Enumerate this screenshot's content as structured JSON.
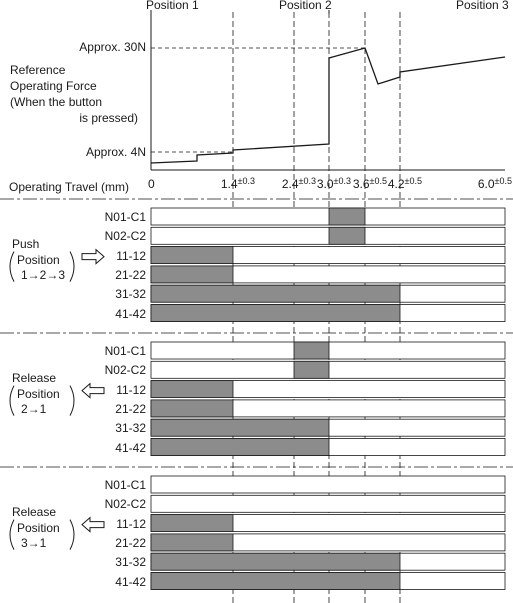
{
  "header": {
    "positions": [
      "Position 1",
      "Position 2",
      "Position 3"
    ]
  },
  "force_chart": {
    "high_label": "Approx. 30N",
    "low_label": "Approx. 4N",
    "y_title_lines": [
      "Reference",
      "Operating Force",
      "(When the button",
      "is pressed)"
    ]
  },
  "travel": {
    "label": "Operating Travel (mm)",
    "ticks": [
      {
        "value": "0",
        "tol": ""
      },
      {
        "value": "1.4",
        "tol": "±0.3"
      },
      {
        "value": "2.4",
        "tol": "±0.3"
      },
      {
        "value": "3.0",
        "tol": "±0.3"
      },
      {
        "value": "3.6",
        "tol": "±0.5"
      },
      {
        "value": "4.2",
        "tol": "±0.5"
      },
      {
        "value": "6.0",
        "tol": "±0.5"
      }
    ]
  },
  "sections": [
    {
      "title": "Push",
      "position_word": "Position",
      "sequence": "1→2→3",
      "arrow": "right",
      "contacts": [
        {
          "name": "N01-C1",
          "on": [
            [
              3.0,
              3.6
            ]
          ]
        },
        {
          "name": "N02-C2",
          "on": [
            [
              3.0,
              3.6
            ]
          ]
        },
        {
          "name": "11-12",
          "on": [
            [
              0,
              1.4
            ]
          ]
        },
        {
          "name": "21-22",
          "on": [
            [
              0,
              1.4
            ]
          ]
        },
        {
          "name": "31-32",
          "on": [
            [
              0,
              4.2
            ]
          ]
        },
        {
          "name": "41-42",
          "on": [
            [
              0,
              4.2
            ]
          ]
        }
      ]
    },
    {
      "title": "Release",
      "position_word": "Position",
      "sequence": "2→1",
      "arrow": "left",
      "contacts": [
        {
          "name": "N01-C1",
          "on": [
            [
              2.4,
              3.0
            ]
          ]
        },
        {
          "name": "N02-C2",
          "on": [
            [
              2.4,
              3.0
            ]
          ]
        },
        {
          "name": "11-12",
          "on": [
            [
              0,
              1.4
            ]
          ]
        },
        {
          "name": "21-22",
          "on": [
            [
              0,
              1.4
            ]
          ]
        },
        {
          "name": "31-32",
          "on": [
            [
              0,
              3.0
            ]
          ]
        },
        {
          "name": "41-42",
          "on": [
            [
              0,
              3.0
            ]
          ]
        }
      ]
    },
    {
      "title": "Release",
      "position_word": "Position",
      "sequence": "3→1",
      "arrow": "left",
      "contacts": [
        {
          "name": "N01-C1",
          "on": []
        },
        {
          "name": "N02-C2",
          "on": []
        },
        {
          "name": "11-12",
          "on": [
            [
              0,
              1.4
            ]
          ]
        },
        {
          "name": "21-22",
          "on": [
            [
              0,
              1.4
            ]
          ]
        },
        {
          "name": "31-32",
          "on": [
            [
              0,
              4.2
            ]
          ]
        },
        {
          "name": "41-42",
          "on": [
            [
              0,
              4.2
            ]
          ]
        }
      ]
    }
  ],
  "colors": {
    "contact_on": "#8c8c8c",
    "line": "#1a1a1a"
  }
}
